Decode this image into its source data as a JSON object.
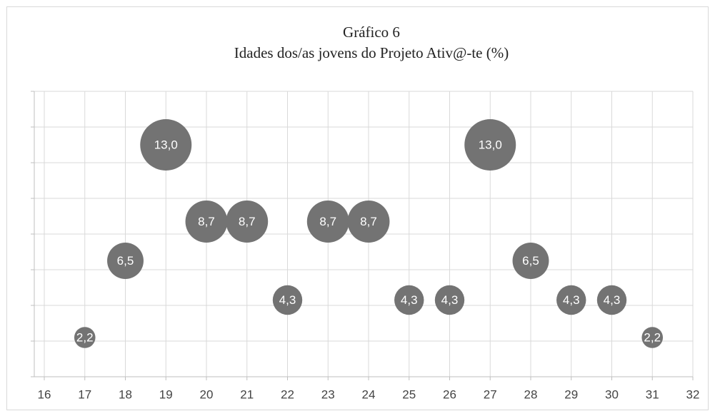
{
  "chart_data": {
    "type": "bubble",
    "title": "Gráfico 6",
    "subtitle": "Idades dos/as jovens do Projeto Ativ@-te (%)",
    "x": [
      17,
      18,
      19,
      20,
      21,
      22,
      23,
      24,
      25,
      26,
      27,
      28,
      29,
      30,
      31
    ],
    "values": [
      2.2,
      6.5,
      13.0,
      8.7,
      8.7,
      4.3,
      8.7,
      8.7,
      4.3,
      4.3,
      13.0,
      6.5,
      4.3,
      4.3,
      2.2
    ],
    "value_labels": [
      "2,2",
      "6,5",
      "13,0",
      "8,7",
      "8,7",
      "4,3",
      "8,7",
      "8,7",
      "4,3",
      "4,3",
      "13,0",
      "6,5",
      "4,3",
      "4,3",
      "2,2"
    ],
    "color": "#737373",
    "xlim": [
      16,
      32
    ],
    "xticks": [
      16,
      17,
      18,
      19,
      20,
      21,
      22,
      23,
      24,
      25,
      26,
      27,
      28,
      29,
      30,
      31,
      32
    ],
    "ylim": [
      0,
      16
    ],
    "yticks": [
      0,
      2,
      4,
      6,
      8,
      10,
      12,
      14,
      16
    ],
    "grid": true
  }
}
